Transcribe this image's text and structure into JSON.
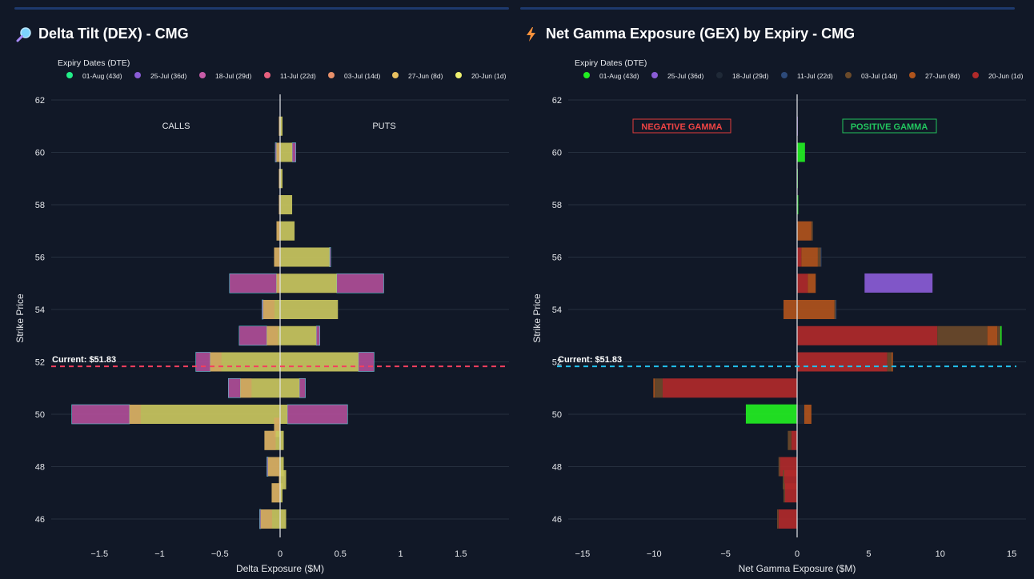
{
  "panels": [
    {
      "title": "Delta Tilt (DEX) - CMG",
      "icon": "magnifier-icon",
      "left_annotation": "CALLS",
      "right_annotation": "PUTS",
      "current_label": "Current: $51.83",
      "current_color": "#f43f5e",
      "legend_title": "Expiry Dates (DTE)"
    },
    {
      "title": "Net Gamma Exposure (GEX) by Expiry - CMG",
      "icon": "lightning-icon",
      "left_annotation": "NEGATIVE GAMMA",
      "right_annotation": "POSITIVE GAMMA",
      "current_label": "Current: $51.83",
      "current_color": "#22c1ee",
      "legend_title": "Expiry Dates (DTE)"
    }
  ],
  "chart_data": [
    {
      "type": "bar",
      "orientation": "horizontal",
      "stacked": "overlay",
      "title": "Delta Tilt (DEX) - CMG",
      "xlabel": "Delta Exposure ($M)",
      "ylabel": "Strike Price",
      "xlim": [
        -1.9,
        1.9
      ],
      "ylim": [
        45,
        63
      ],
      "xticks": [
        -1.5,
        -1,
        -0.5,
        0,
        0.5,
        1,
        1.5
      ],
      "xtick_labels": [
        "−1.5",
        "−1",
        "−0.5",
        "0",
        "0.5",
        "1",
        "1.5"
      ],
      "yticks": [
        46,
        48,
        50,
        52,
        54,
        56,
        58,
        60,
        62
      ],
      "current_price": 51.83,
      "grid": true,
      "legend_position": "top",
      "series": [
        {
          "name": "01-Aug (43d)",
          "color": "#22ee88"
        },
        {
          "name": "25-Jul (36d)",
          "color": "#8a5cd6"
        },
        {
          "name": "18-Jul (29d)",
          "color": "#c85ca8"
        },
        {
          "name": "11-Jul (22d)",
          "color": "#e8607e"
        },
        {
          "name": "03-Jul (14d)",
          "color": "#e8906a"
        },
        {
          "name": "27-Jun (8d)",
          "color": "#e8c060"
        },
        {
          "name": "20-Jun (1d)",
          "color": "#eef070"
        }
      ],
      "bars": [
        {
          "strike": 61,
          "calls": -0.01,
          "puts": 0.02,
          "mag_calls": -0.01,
          "mag_puts": 0.02
        },
        {
          "strike": 60,
          "calls": -0.03,
          "puts": 0.1,
          "mag_calls": -0.04,
          "mag_puts": 0.13
        },
        {
          "strike": 59,
          "calls": -0.01,
          "puts": 0.02,
          "mag_calls": -0.01,
          "mag_puts": 0.02
        },
        {
          "strike": 58,
          "calls": -0.01,
          "puts": 0.1,
          "mag_calls": -0.01,
          "mag_puts": 0.1
        },
        {
          "strike": 57,
          "calls": -0.03,
          "puts": 0.12,
          "mag_calls": -0.03,
          "mag_puts": 0.12
        },
        {
          "strike": 56,
          "calls": -0.05,
          "puts": 0.41,
          "mag_calls": -0.05,
          "mag_puts": 0.42
        },
        {
          "strike": 55,
          "calls": -0.03,
          "puts": 0.47,
          "mag_calls": -0.42,
          "mag_puts": 0.86
        },
        {
          "strike": 54,
          "calls": -0.14,
          "puts": 0.48,
          "mag_calls": -0.15,
          "mag_puts": 0.48
        },
        {
          "strike": 53,
          "calls": -0.11,
          "puts": 0.3,
          "mag_calls": -0.34,
          "mag_puts": 0.33
        },
        {
          "strike": 52,
          "calls": -0.58,
          "puts": 0.65,
          "mag_calls": -0.7,
          "mag_puts": 0.78
        },
        {
          "strike": 51,
          "calls": -0.33,
          "puts": 0.16,
          "mag_calls": -0.43,
          "mag_puts": 0.21
        },
        {
          "strike": 50,
          "calls": -1.25,
          "puts": 0.06,
          "mag_calls": -1.73,
          "mag_puts": 0.56
        },
        {
          "strike": 49.5,
          "calls": -0.05,
          "puts": 0.0,
          "mag_calls": -0.05,
          "mag_puts": 0.0
        },
        {
          "strike": 49,
          "calls": -0.13,
          "puts": 0.03,
          "mag_calls": -0.13,
          "mag_puts": 0.03
        },
        {
          "strike": 48,
          "calls": -0.1,
          "puts": 0.03,
          "mag_calls": -0.11,
          "mag_puts": 0.03
        },
        {
          "strike": 47.5,
          "calls": -0.01,
          "puts": 0.05,
          "mag_calls": -0.01,
          "mag_puts": 0.05
        },
        {
          "strike": 47,
          "calls": -0.07,
          "puts": 0.02,
          "mag_calls": -0.07,
          "mag_puts": 0.02
        },
        {
          "strike": 46,
          "calls": -0.16,
          "puts": 0.05,
          "mag_calls": -0.17,
          "mag_puts": 0.05
        }
      ]
    },
    {
      "type": "bar",
      "orientation": "horizontal",
      "stacked": true,
      "title": "Net Gamma Exposure (GEX) by Expiry - CMG",
      "xlabel": "Net Gamma Exposure ($M)",
      "ylabel": "Strike Price",
      "xlim": [
        -16,
        16
      ],
      "ylim": [
        45,
        63
      ],
      "xticks": [
        -15,
        -10,
        -5,
        0,
        5,
        10,
        15
      ],
      "xtick_labels": [
        "−15",
        "−10",
        "−5",
        "0",
        "5",
        "10",
        "15"
      ],
      "yticks": [
        46,
        48,
        50,
        52,
        54,
        56,
        58,
        60,
        62
      ],
      "current_price": 51.83,
      "grid": true,
      "legend_position": "top",
      "series": [
        {
          "name": "01-Aug (43d)",
          "color": "#22ee22"
        },
        {
          "name": "25-Jul (36d)",
          "color": "#8a5cd6"
        },
        {
          "name": "18-Jul (29d)",
          "color": "#1f2937"
        },
        {
          "name": "11-Jul (22d)",
          "color": "#2d4a7a"
        },
        {
          "name": "03-Jul (14d)",
          "color": "#6b4a2a"
        },
        {
          "name": "27-Jun (8d)",
          "color": "#b0541c"
        },
        {
          "name": "20-Jun (1d)",
          "color": "#b02a2a"
        }
      ],
      "bars": [
        {
          "strike": 61,
          "segments": [
            {
              "s": 1,
              "v": 0.05
            }
          ]
        },
        {
          "strike": 60,
          "segments": [
            {
              "s": 0,
              "v": 0.55
            }
          ]
        },
        {
          "strike": 59,
          "segments": [
            {
              "s": 0,
              "v": 0.05
            }
          ]
        },
        {
          "strike": 58,
          "segments": [
            {
              "s": 0,
              "v": 0.08
            }
          ]
        },
        {
          "strike": 57,
          "segments": [
            {
              "s": 5,
              "v": 1.0
            },
            {
              "s": 4,
              "v": 0.1
            }
          ]
        },
        {
          "strike": 56,
          "segments": [
            {
              "s": 6,
              "v": 0.3
            },
            {
              "s": 5,
              "v": 1.15
            },
            {
              "s": 4,
              "v": 0.2
            },
            {
              "s": 3,
              "v": 0.05
            }
          ]
        },
        {
          "strike": 55,
          "segments": [
            {
              "s": 6,
              "v": 0.75
            },
            {
              "s": 5,
              "v": 0.55
            }
          ]
        },
        {
          "strike": 55.01,
          "segments": [
            {
              "s": 1,
              "v": 4.75,
              "thin": true
            }
          ]
        },
        {
          "strike": 54,
          "segments": [
            {
              "s": 5,
              "v": -0.95
            },
            {
              "s": 5,
              "v": 2.6
            },
            {
              "s": 4,
              "v": 0.1
            },
            {
              "s": 3,
              "v": 0.05
            }
          ]
        },
        {
          "strike": 53,
          "segments": [
            {
              "s": 6,
              "v": 9.8
            },
            {
              "s": 4,
              "v": 3.5
            },
            {
              "s": 5,
              "v": 0.7
            },
            {
              "s": 4,
              "v": 0.2
            },
            {
              "s": 0,
              "v": 0.1
            }
          ]
        },
        {
          "strike": 52,
          "segments": [
            {
              "s": 6,
              "v": 6.3
            },
            {
              "s": 4,
              "v": 0.3
            },
            {
              "s": 5,
              "v": 0.1
            }
          ]
        },
        {
          "strike": 51,
          "segments": [
            {
              "s": 6,
              "v": -9.4
            },
            {
              "s": 4,
              "v": -0.55
            },
            {
              "s": 5,
              "v": -0.1
            }
          ]
        },
        {
          "strike": 50,
          "segments": [
            {
              "s": 2,
              "v": 0.5
            },
            {
              "s": 5,
              "v": 0.5
            }
          ]
        },
        {
          "strike": 50.01,
          "segments": [
            {
              "s": 0,
              "v": -3.55,
              "thin": true
            }
          ]
        },
        {
          "strike": 49,
          "segments": [
            {
              "s": 6,
              "v": -0.4
            },
            {
              "s": 4,
              "v": -0.25
            }
          ]
        },
        {
          "strike": 48,
          "segments": [
            {
              "s": 6,
              "v": -1.2
            },
            {
              "s": 4,
              "v": -0.1
            }
          ]
        },
        {
          "strike": 47.5,
          "segments": [
            {
              "s": 6,
              "v": -0.9
            },
            {
              "s": 4,
              "v": -0.1
            }
          ]
        },
        {
          "strike": 47,
          "segments": [
            {
              "s": 6,
              "v": -0.85
            },
            {
              "s": 4,
              "v": -0.1
            }
          ]
        },
        {
          "strike": 46,
          "segments": [
            {
              "s": 6,
              "v": -1.3
            },
            {
              "s": 4,
              "v": -0.1
            }
          ]
        }
      ]
    }
  ]
}
